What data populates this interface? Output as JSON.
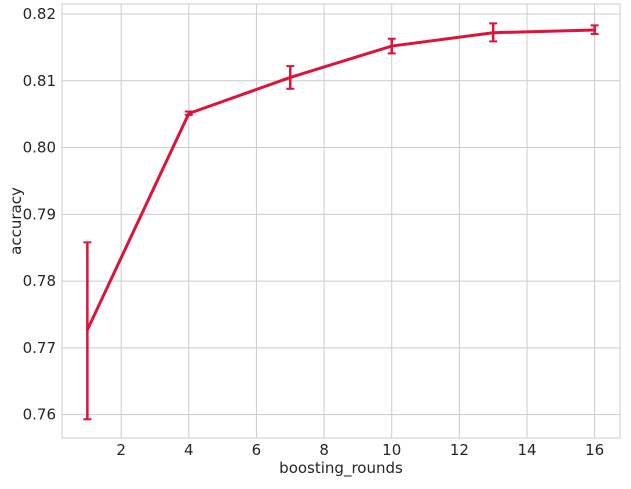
{
  "chart_data": {
    "type": "line",
    "title": "",
    "xlabel": "boosting_rounds",
    "ylabel": "accuracy",
    "xlim": [
      0.25,
      16.75
    ],
    "ylim": [
      0.7565,
      0.8215
    ],
    "x_ticks": [
      2,
      4,
      6,
      8,
      10,
      12,
      14,
      16
    ],
    "y_ticks": [
      0.76,
      0.77,
      0.78,
      0.79,
      0.8,
      0.81,
      0.82
    ],
    "x_tick_labels": [
      "2",
      "4",
      "6",
      "8",
      "10",
      "12",
      "14",
      "16"
    ],
    "y_tick_labels": [
      "0.76",
      "0.77",
      "0.78",
      "0.79",
      "0.80",
      "0.81",
      "0.82"
    ],
    "grid": true,
    "series": [
      {
        "color": "#dc143c",
        "x": [
          1,
          4,
          7,
          10,
          13,
          16
        ],
        "y": [
          0.7727,
          0.8051,
          0.8105,
          0.8152,
          0.8172,
          0.8176
        ],
        "error_lower": [
          0.7593,
          0.8049,
          0.8088,
          0.8141,
          0.8159,
          0.817
        ],
        "error_upper": [
          0.7858,
          0.8054,
          0.8122,
          0.8163,
          0.8186,
          0.8183
        ]
      }
    ]
  }
}
